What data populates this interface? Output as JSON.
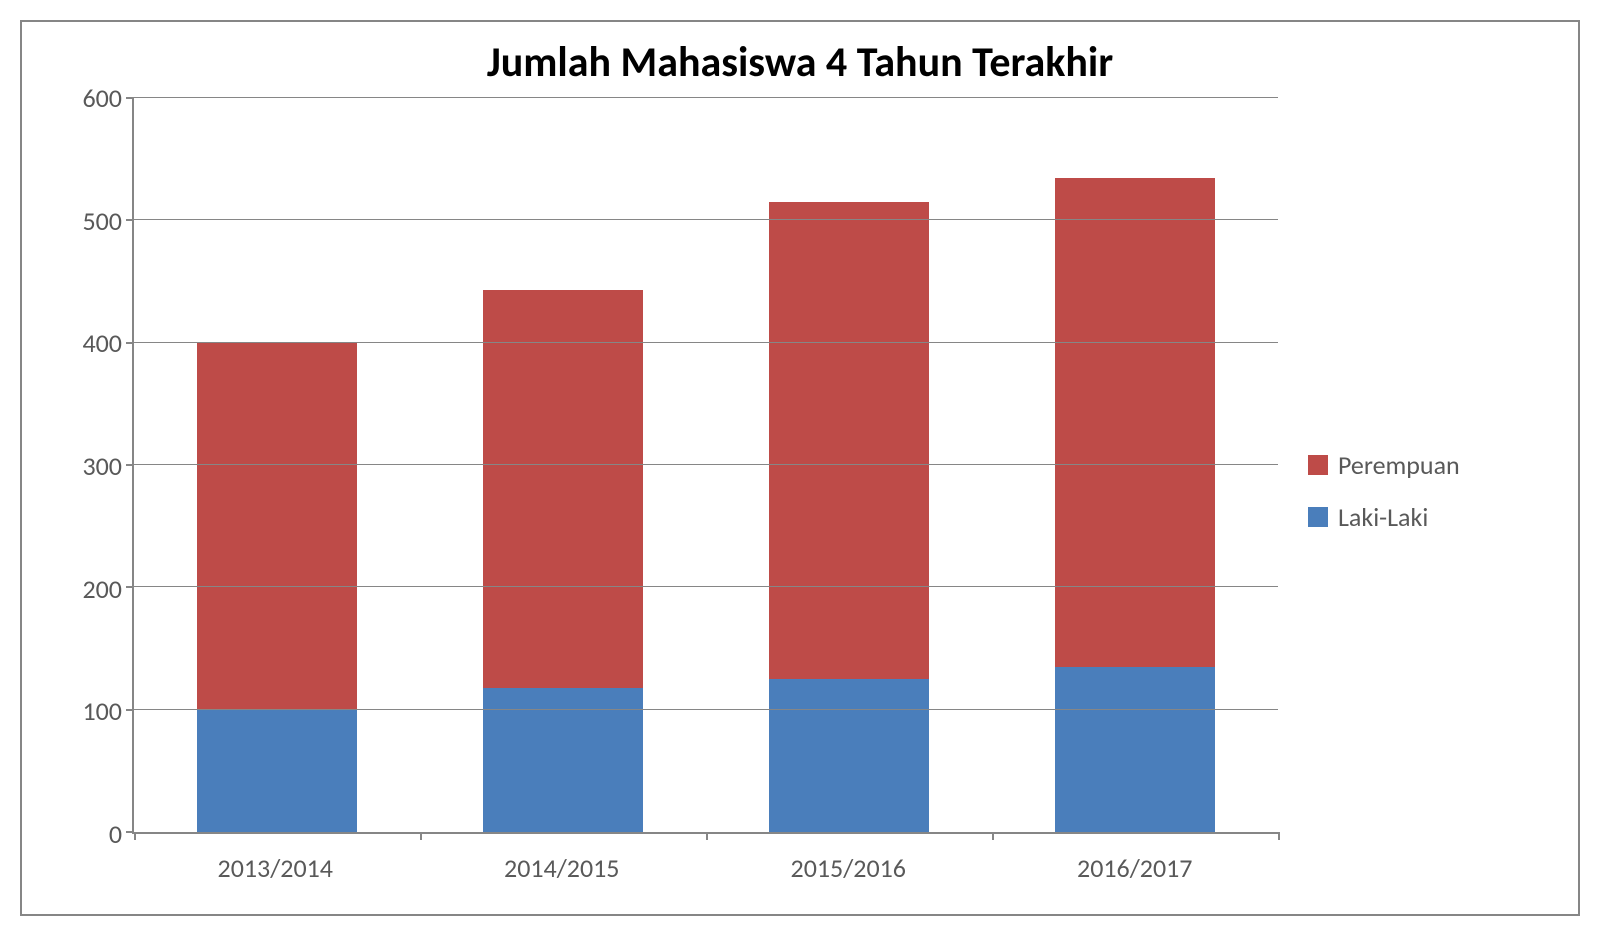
{
  "chart": {
    "type": "stacked-bar",
    "title": "Jumlah Mahasiswa 4 Tahun Terakhir",
    "title_fontsize": 42,
    "categories": [
      "2013/2014",
      "2014/2015",
      "2015/2016",
      "2016/2017"
    ],
    "series": [
      {
        "name": "Laki-Laki",
        "color": "#4a7ebb",
        "values": [
          100,
          118,
          125,
          135
        ]
      },
      {
        "name": "Perempuan",
        "color": "#be4b48",
        "values": [
          300,
          325,
          390,
          400
        ]
      }
    ],
    "legend_order": [
      "Perempuan",
      "Laki-Laki"
    ],
    "ylim": [
      0,
      600
    ],
    "ytick_step": 100,
    "yticks": [
      0,
      100,
      200,
      300,
      400,
      500,
      600
    ],
    "axis_label_fontsize": 26,
    "axis_label_color": "#595959",
    "grid_color": "#868686",
    "border_color": "#868686",
    "background_color": "#ffffff",
    "bar_width_pct": 56
  }
}
